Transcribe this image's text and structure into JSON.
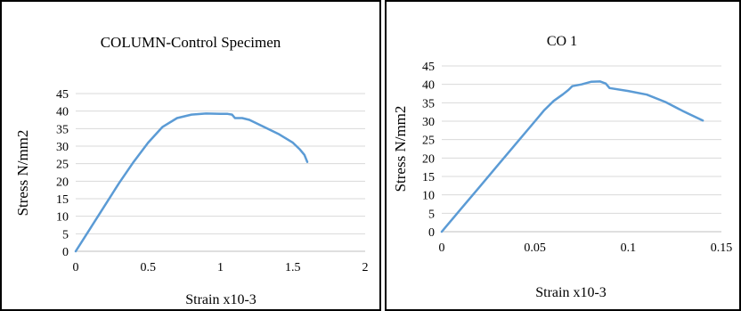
{
  "chart_data": [
    {
      "type": "line",
      "title": "COLUMN-Control Specimen",
      "xlabel": "Strain x10-3",
      "ylabel": "Stress N/mm2",
      "xlim": [
        0,
        2
      ],
      "ylim": [
        0,
        45
      ],
      "xticks": [
        0,
        0.5,
        1,
        1.5,
        2
      ],
      "xtick_labels": [
        "0",
        "0.5",
        "1",
        "1.5",
        "2"
      ],
      "yticks": [
        0,
        5,
        10,
        15,
        20,
        25,
        30,
        35,
        40,
        45
      ],
      "ytick_labels": [
        "0",
        "5",
        "10",
        "15",
        "20",
        "25",
        "30",
        "35",
        "40",
        "45"
      ],
      "grid": "horizontal",
      "series": [
        {
          "color": "#5b9bd5",
          "x": [
            0,
            0.1,
            0.2,
            0.3,
            0.4,
            0.5,
            0.6,
            0.7,
            0.8,
            0.9,
            1.0,
            1.05,
            1.08,
            1.1,
            1.15,
            1.2,
            1.3,
            1.4,
            1.5,
            1.55,
            1.58,
            1.6
          ],
          "y": [
            0,
            6.5,
            13,
            19.5,
            25.5,
            31,
            35.5,
            38,
            39,
            39.3,
            39.2,
            39.2,
            39,
            38,
            38,
            37.5,
            35.5,
            33.5,
            31,
            29,
            27.5,
            25.5
          ]
        }
      ]
    },
    {
      "type": "line",
      "title": "CO 1",
      "xlabel": "Strain x10-3",
      "ylabel": "Stress N/mm2",
      "xlim": [
        0,
        0.15
      ],
      "ylim": [
        0,
        45
      ],
      "xticks": [
        0,
        0.05,
        0.1,
        0.15
      ],
      "xtick_labels": [
        "0",
        "0.05",
        "0.1",
        "0.15"
      ],
      "yticks": [
        0,
        5,
        10,
        15,
        20,
        25,
        30,
        35,
        40,
        45
      ],
      "ytick_labels": [
        "0",
        "5",
        "10",
        "15",
        "20",
        "25",
        "30",
        "35",
        "40",
        "45"
      ],
      "grid": "horizontal",
      "series": [
        {
          "color": "#5b9bd5",
          "x": [
            0,
            0.01,
            0.02,
            0.03,
            0.04,
            0.05,
            0.055,
            0.06,
            0.065,
            0.068,
            0.07,
            0.075,
            0.08,
            0.085,
            0.088,
            0.09,
            0.1,
            0.11,
            0.12,
            0.13,
            0.14
          ],
          "y": [
            0,
            6,
            12,
            18,
            24,
            30,
            33,
            35.5,
            37.3,
            38.5,
            39.5,
            40,
            40.7,
            40.8,
            40.2,
            39,
            38.2,
            37.2,
            35.2,
            32.6,
            30.2
          ]
        }
      ]
    }
  ]
}
